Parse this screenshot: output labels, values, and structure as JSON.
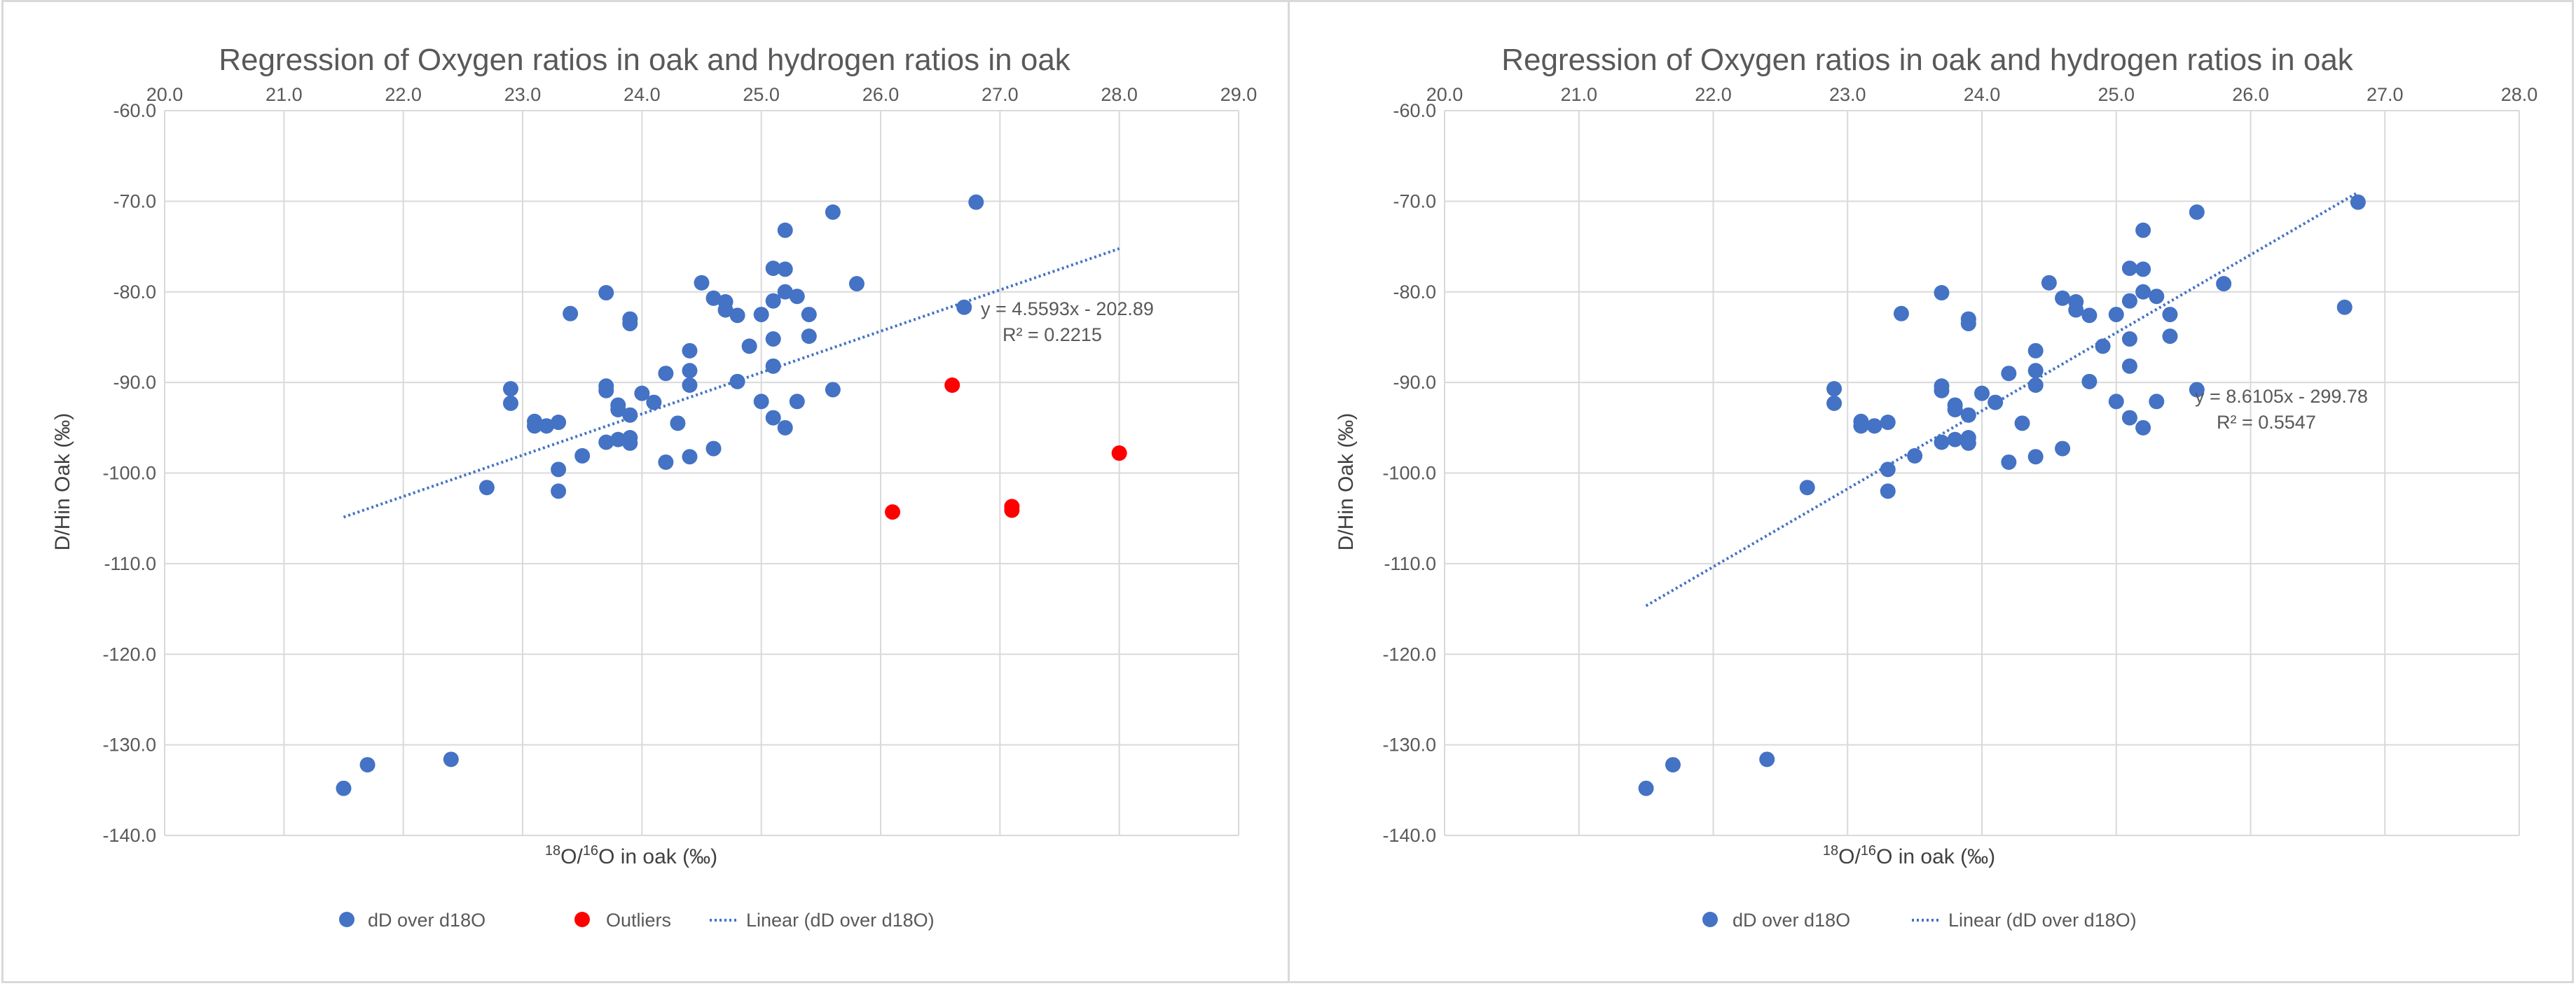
{
  "chart_data": [
    {
      "type": "scatter",
      "title": "Regression of Oxygen ratios in oak and hydrogen ratios in oak",
      "xlabel": "18O/16O in oak (‰)",
      "xlabel_parts": {
        "sup1": "18",
        "mid": "O/",
        "sup2": "16",
        "tail": "O in oak (‰)"
      },
      "ylabel": "D/Hin Oak (‰)",
      "xlim": [
        20,
        29
      ],
      "ylim": [
        -140,
        -60
      ],
      "x_ticks": [
        "20.0",
        "21.0",
        "22.0",
        "23.0",
        "24.0",
        "25.0",
        "26.0",
        "27.0",
        "28.0",
        "29.0"
      ],
      "y_ticks": [
        "-60.0",
        "-70.0",
        "-80.0",
        "-90.0",
        "-100.0",
        "-110.0",
        "-120.0",
        "-130.0",
        "-140.0"
      ],
      "grid": true,
      "legend_position": "bottom",
      "colors": {
        "series": "#4472c4",
        "outliers": "#ff0000",
        "trend": "#4472c4"
      },
      "series": [
        {
          "name": "dD over d18O",
          "kind": "points",
          "points": [
            [
              21.5,
              -134.8
            ],
            [
              21.7,
              -132.2
            ],
            [
              22.4,
              -131.6
            ],
            [
              22.7,
              -101.6
            ],
            [
              22.9,
              -90.7
            ],
            [
              22.9,
              -92.3
            ],
            [
              23.1,
              -94.3
            ],
            [
              23.1,
              -94.8
            ],
            [
              23.2,
              -94.8
            ],
            [
              23.3,
              -94.4
            ],
            [
              23.3,
              -99.6
            ],
            [
              23.3,
              -102.0
            ],
            [
              23.4,
              -82.4
            ],
            [
              23.5,
              -98.1
            ],
            [
              23.7,
              -80.1
            ],
            [
              23.7,
              -90.4
            ],
            [
              23.7,
              -90.9
            ],
            [
              23.7,
              -96.6
            ],
            [
              23.8,
              -92.5
            ],
            [
              23.8,
              -93.0
            ],
            [
              23.8,
              -96.3
            ],
            [
              23.9,
              -83.0
            ],
            [
              23.9,
              -83.5
            ],
            [
              23.9,
              -93.6
            ],
            [
              23.9,
              -96.1
            ],
            [
              23.9,
              -96.7
            ],
            [
              24.0,
              -91.2
            ],
            [
              24.1,
              -92.2
            ],
            [
              24.2,
              -89.0
            ],
            [
              24.2,
              -98.8
            ],
            [
              24.3,
              -94.5
            ],
            [
              24.4,
              -86.5
            ],
            [
              24.4,
              -88.7
            ],
            [
              24.4,
              -90.3
            ],
            [
              24.4,
              -98.2
            ],
            [
              24.5,
              -79.0
            ],
            [
              24.6,
              -80.7
            ],
            [
              24.6,
              -97.3
            ],
            [
              24.7,
              -81.1
            ],
            [
              24.7,
              -82.0
            ],
            [
              24.8,
              -82.6
            ],
            [
              24.8,
              -89.9
            ],
            [
              24.9,
              -86.0
            ],
            [
              25.0,
              -82.5
            ],
            [
              25.0,
              -92.1
            ],
            [
              25.1,
              -77.4
            ],
            [
              25.1,
              -81.0
            ],
            [
              25.1,
              -85.2
            ],
            [
              25.1,
              -88.2
            ],
            [
              25.1,
              -93.9
            ],
            [
              25.2,
              -73.2
            ],
            [
              25.2,
              -77.5
            ],
            [
              25.2,
              -80.0
            ],
            [
              25.2,
              -95.0
            ],
            [
              25.3,
              -80.5
            ],
            [
              25.3,
              -92.1
            ],
            [
              25.4,
              -82.5
            ],
            [
              25.4,
              -84.9
            ],
            [
              25.6,
              -71.2
            ],
            [
              25.6,
              -90.8
            ],
            [
              25.8,
              -79.1
            ],
            [
              26.7,
              -81.7
            ],
            [
              26.8,
              -70.1
            ]
          ]
        },
        {
          "name": "Outliers",
          "kind": "points",
          "points": [
            [
              26.1,
              -104.3
            ],
            [
              26.6,
              -90.3
            ],
            [
              27.1,
              -103.7
            ],
            [
              27.1,
              -104.1
            ],
            [
              28.0,
              -97.8
            ]
          ]
        },
        {
          "name": "Linear (dD over d18O)",
          "kind": "trendline",
          "slope": 4.5593,
          "intercept": -202.89,
          "x_range": [
            21.5,
            28.0
          ]
        }
      ],
      "equation": "y = 4.5593x - 202.89",
      "r_squared": "R² = 0.2215"
    },
    {
      "type": "scatter",
      "title": "Regression of Oxygen ratios in oak and hydrogen ratios in oak",
      "xlabel": "18O/16O in oak (‰)",
      "xlabel_parts": {
        "sup1": "18",
        "mid": "O/",
        "sup2": "16",
        "tail": "O in oak (‰)"
      },
      "ylabel": "D/Hin Oak (‰)",
      "xlim": [
        20,
        28
      ],
      "ylim": [
        -140,
        -60
      ],
      "x_ticks": [
        "20.0",
        "21.0",
        "22.0",
        "23.0",
        "24.0",
        "25.0",
        "26.0",
        "27.0",
        "28.0"
      ],
      "y_ticks": [
        "-60.0",
        "-70.0",
        "-80.0",
        "-90.0",
        "-100.0",
        "-110.0",
        "-120.0",
        "-130.0",
        "-140.0"
      ],
      "grid": true,
      "legend_position": "bottom",
      "colors": {
        "series": "#4472c4",
        "trend": "#4472c4"
      },
      "series": [
        {
          "name": "dD over d18O",
          "kind": "points",
          "points": [
            [
              21.5,
              -134.8
            ],
            [
              21.7,
              -132.2
            ],
            [
              22.4,
              -131.6
            ],
            [
              22.7,
              -101.6
            ],
            [
              22.9,
              -90.7
            ],
            [
              22.9,
              -92.3
            ],
            [
              23.1,
              -94.3
            ],
            [
              23.1,
              -94.8
            ],
            [
              23.2,
              -94.8
            ],
            [
              23.3,
              -94.4
            ],
            [
              23.3,
              -99.6
            ],
            [
              23.3,
              -102.0
            ],
            [
              23.4,
              -82.4
            ],
            [
              23.5,
              -98.1
            ],
            [
              23.7,
              -80.1
            ],
            [
              23.7,
              -90.4
            ],
            [
              23.7,
              -90.9
            ],
            [
              23.7,
              -96.6
            ],
            [
              23.8,
              -92.5
            ],
            [
              23.8,
              -93.0
            ],
            [
              23.8,
              -96.3
            ],
            [
              23.9,
              -83.0
            ],
            [
              23.9,
              -83.5
            ],
            [
              23.9,
              -93.6
            ],
            [
              23.9,
              -96.1
            ],
            [
              23.9,
              -96.7
            ],
            [
              24.0,
              -91.2
            ],
            [
              24.1,
              -92.2
            ],
            [
              24.2,
              -89.0
            ],
            [
              24.2,
              -98.8
            ],
            [
              24.3,
              -94.5
            ],
            [
              24.4,
              -86.5
            ],
            [
              24.4,
              -88.7
            ],
            [
              24.4,
              -90.3
            ],
            [
              24.4,
              -98.2
            ],
            [
              24.5,
              -79.0
            ],
            [
              24.6,
              -80.7
            ],
            [
              24.6,
              -97.3
            ],
            [
              24.7,
              -81.1
            ],
            [
              24.7,
              -82.0
            ],
            [
              24.8,
              -82.6
            ],
            [
              24.8,
              -89.9
            ],
            [
              24.9,
              -86.0
            ],
            [
              25.0,
              -82.5
            ],
            [
              25.0,
              -92.1
            ],
            [
              25.1,
              -77.4
            ],
            [
              25.1,
              -81.0
            ],
            [
              25.1,
              -85.2
            ],
            [
              25.1,
              -88.2
            ],
            [
              25.1,
              -93.9
            ],
            [
              25.2,
              -73.2
            ],
            [
              25.2,
              -77.5
            ],
            [
              25.2,
              -80.0
            ],
            [
              25.2,
              -95.0
            ],
            [
              25.3,
              -80.5
            ],
            [
              25.3,
              -92.1
            ],
            [
              25.4,
              -82.5
            ],
            [
              25.4,
              -84.9
            ],
            [
              25.6,
              -71.2
            ],
            [
              25.6,
              -90.8
            ],
            [
              25.8,
              -79.1
            ],
            [
              26.7,
              -81.7
            ],
            [
              26.8,
              -70.1
            ]
          ]
        },
        {
          "name": "Linear (dD over d18O)",
          "kind": "trendline",
          "slope": 8.6105,
          "intercept": -299.78,
          "x_range": [
            21.5,
            26.8
          ]
        }
      ],
      "equation": "y = 8.6105x - 299.78",
      "r_squared": "R² = 0.5547"
    }
  ]
}
